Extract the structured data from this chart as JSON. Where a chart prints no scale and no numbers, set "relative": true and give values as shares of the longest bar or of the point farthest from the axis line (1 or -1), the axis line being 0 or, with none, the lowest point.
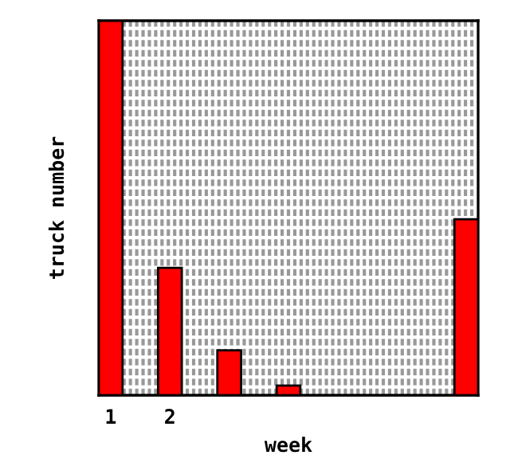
{
  "chart_data": {
    "type": "bar",
    "relative": true,
    "xlabel": "week",
    "ylabel": "truck number",
    "categories": [
      "1",
      "2",
      null,
      null,
      null,
      null,
      null
    ],
    "values": [
      1,
      0.34,
      0.12,
      0.026,
      null,
      null,
      0.47
    ],
    "color": "#ff0000",
    "grid": true,
    "legend": false
  }
}
